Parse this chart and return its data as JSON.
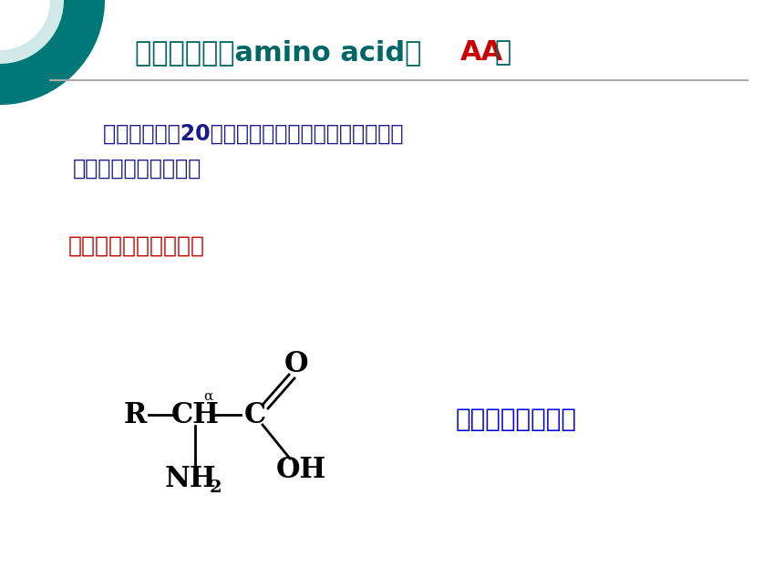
{
  "title_part1": "一、氨基酸（amino acid，  ",
  "title_part2": "AA",
  "title_part3": "）",
  "title_color_main": "#006666",
  "title_color_aa": "#cc0000",
  "bg_color": "#ffffff",
  "line_color": "#aaaaaa",
  "body_text1_line1": "    一般蛋白质有20多种氨基酸组成，不同组合的氨基",
  "body_text1_line2": "酸构成不同的蛋白质。",
  "body_text1_color": "#1a1a8e",
  "subheading": "（一）氨基酸及其分类",
  "subheading_color": "#cc0000",
  "formula_label": "氨基酸分子式通式",
  "formula_label_color": "#0000ee",
  "teal_color": "#007878",
  "teal_inner_color": "#d0e8e8"
}
